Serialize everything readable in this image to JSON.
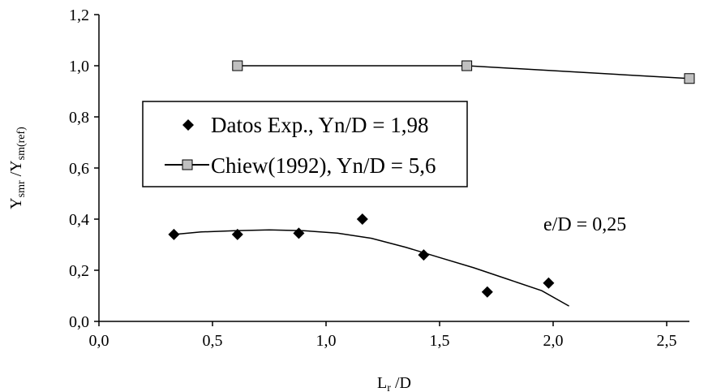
{
  "chart_data": {
    "type": "scatter",
    "xlabel": {
      "main": "L",
      "sub": "r",
      "rest": " /D"
    },
    "ylabel": {
      "main1": "Y",
      "sub1": "smr",
      "mid": " /Y",
      "sub2": "sm(ref)"
    },
    "xlim": [
      0.0,
      2.6
    ],
    "ylim": [
      0.0,
      1.2
    ],
    "x_ticks": [
      "0,0",
      "0,5",
      "1,0",
      "1,5",
      "2,0",
      "2,5"
    ],
    "y_ticks": [
      "0,0",
      "0,2",
      "0,4",
      "0,6",
      "0,8",
      "1,0",
      "1,2"
    ],
    "grid": false,
    "legend_position": "center-left",
    "series": [
      {
        "name": "Datos Exp., Yn/D = 1,98",
        "marker": "diamond",
        "color": "#000000",
        "points": [
          [
            0.33,
            0.34
          ],
          [
            0.61,
            0.34
          ],
          [
            0.88,
            0.345
          ],
          [
            1.16,
            0.4
          ],
          [
            1.43,
            0.26
          ],
          [
            1.71,
            0.115
          ],
          [
            1.98,
            0.15
          ]
        ]
      },
      {
        "name": "Chiew(1992), Yn/D = 5,6",
        "marker": "square",
        "color": "#000000",
        "marker_fill": "#c0c0c0",
        "points": [
          [
            0.61,
            1.0
          ],
          [
            1.62,
            1.0
          ],
          [
            2.6,
            0.95
          ]
        ]
      }
    ],
    "trendline": {
      "color": "#000000",
      "points": [
        [
          0.33,
          0.34
        ],
        [
          0.45,
          0.35
        ],
        [
          0.6,
          0.355
        ],
        [
          0.75,
          0.358
        ],
        [
          0.9,
          0.355
        ],
        [
          1.05,
          0.345
        ],
        [
          1.2,
          0.325
        ],
        [
          1.35,
          0.29
        ],
        [
          1.5,
          0.25
        ],
        [
          1.65,
          0.21
        ],
        [
          1.8,
          0.165
        ],
        [
          1.95,
          0.12
        ],
        [
          2.07,
          0.06
        ]
      ]
    },
    "annotation": "e/D = 0,25"
  }
}
